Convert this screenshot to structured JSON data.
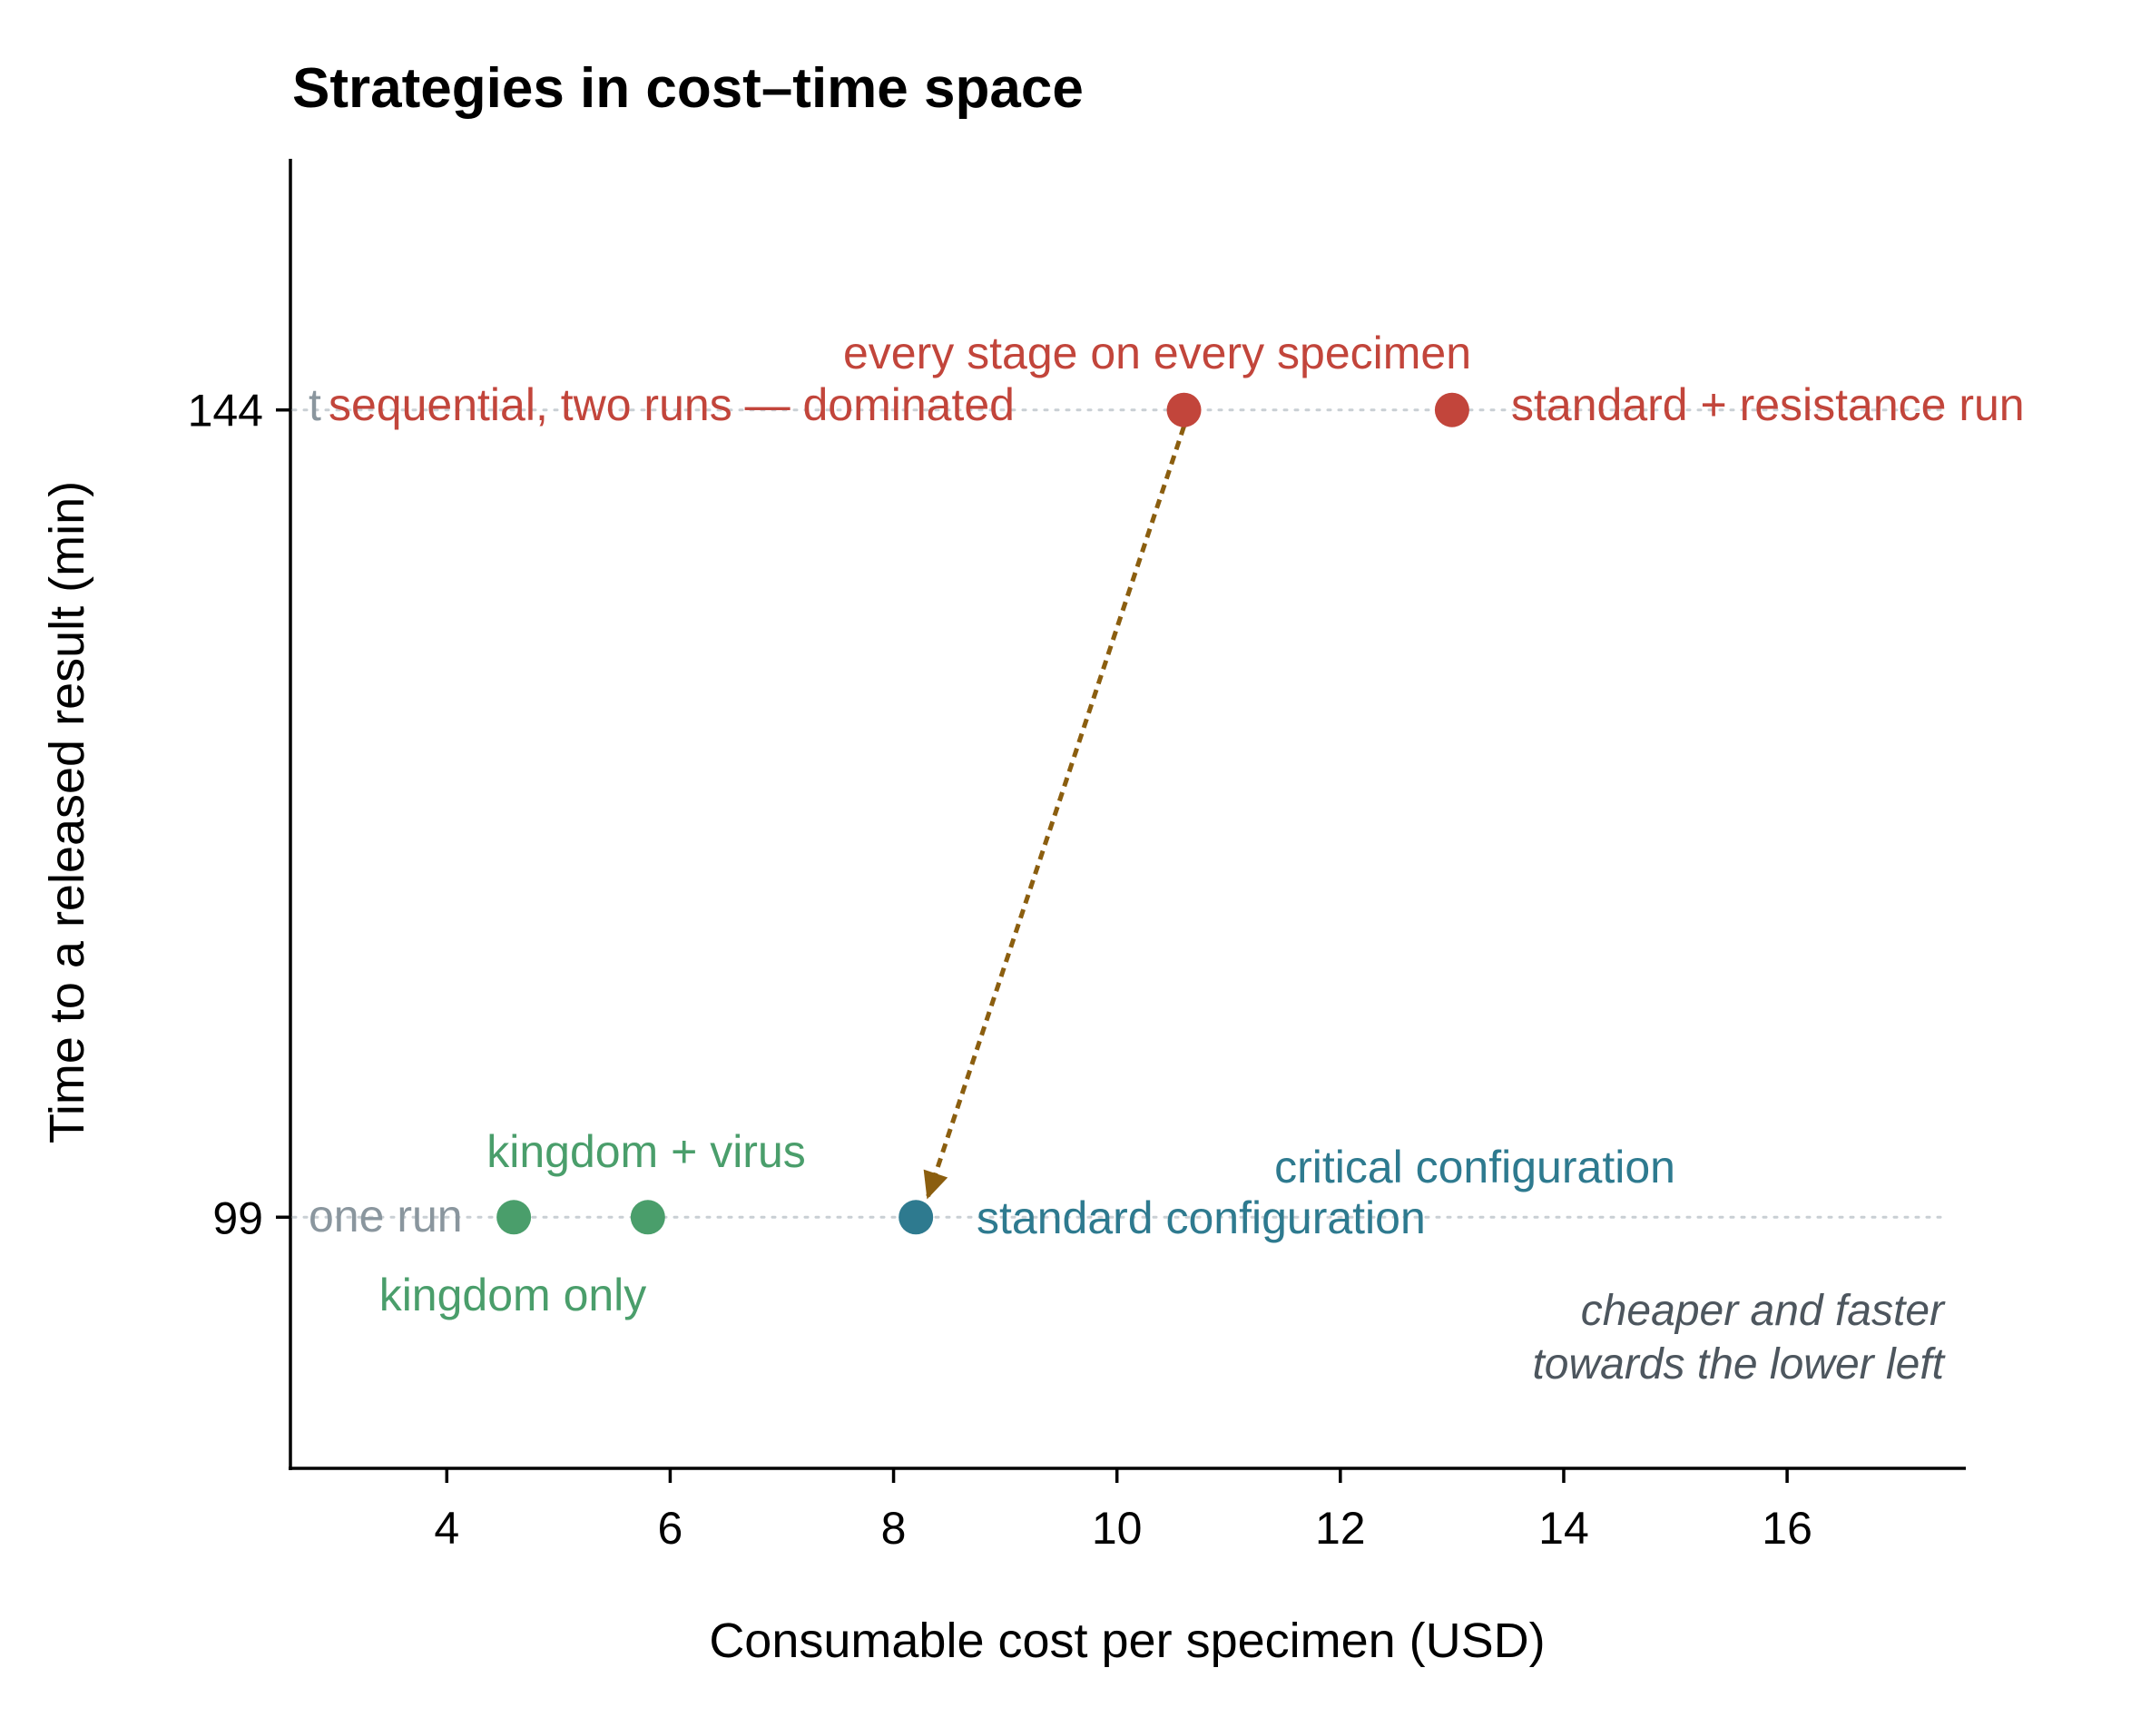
{
  "chart_data": {
    "type": "scatter",
    "title": "Strategies in cost–time space",
    "xlabel": "Consumable cost per specimen (USD)",
    "ylabel": "Time to a released result (min)",
    "xlim": [
      2.6,
      17.6
    ],
    "ylim": [
      85,
      158
    ],
    "xticks": [
      4,
      6,
      8,
      10,
      12,
      14,
      16
    ],
    "yticks": [
      99,
      144
    ],
    "grid": false,
    "reference_lines": [
      {
        "y": 144,
        "style": "dotted",
        "color": "#c9cfd4"
      },
      {
        "y": 99,
        "style": "dotted",
        "color": "#c9cfd4"
      }
    ],
    "row_labels": [
      {
        "y": 144,
        "text": "t",
        "color": "#8a969e"
      },
      {
        "y": 99,
        "text": "one run",
        "color": "#8a969e"
      }
    ],
    "points": [
      {
        "x": 4.6,
        "y": 99,
        "color": "#4a9e6b",
        "label": "kingdom only"
      },
      {
        "x": 5.8,
        "y": 99,
        "color": "#4a9e6b",
        "label": "kingdom + virus"
      },
      {
        "x": 8.2,
        "y": 99,
        "color": "#2e7a8f",
        "label": "standard configuration"
      },
      {
        "x": 10.6,
        "y": 144,
        "color": "#c2453b",
        "label": "every stage on every specimen"
      },
      {
        "x": 13.0,
        "y": 144,
        "color": "#c2453b",
        "label": "standard + resistance run"
      }
    ],
    "extra_labels": [
      {
        "text": "sequential, two runs — dominated",
        "color": "#c2453b"
      },
      {
        "text": "critical configuration",
        "color": "#2e7a8f"
      }
    ],
    "arrow": {
      "from": [
        10.6,
        144
      ],
      "to": [
        8.3,
        100
      ],
      "color": "#8b5e0f",
      "style": "dashed"
    },
    "annotation": [
      "cheaper and faster",
      "towards the lower left"
    ]
  },
  "colors": {
    "axis": "#000000",
    "guide": "#c9cfd4",
    "red": "#c2453b",
    "green": "#4a9e6b",
    "teal": "#2e7a8f",
    "gray": "#8a969e",
    "arrow": "#8b5e0f",
    "note": "#4d565e"
  }
}
